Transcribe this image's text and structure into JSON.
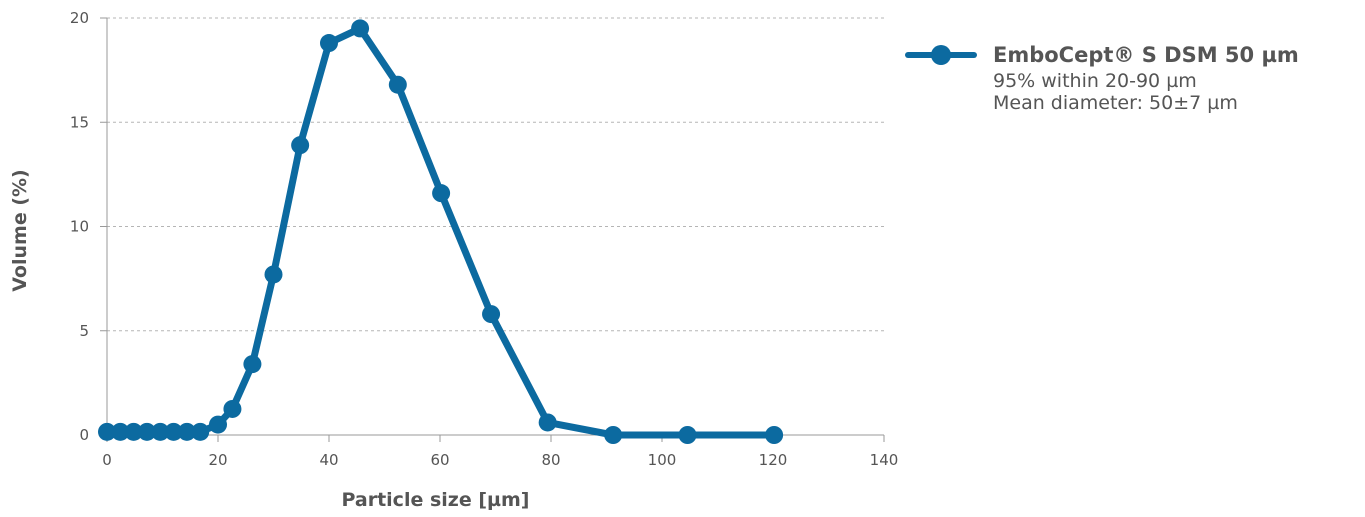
{
  "chart_data": {
    "type": "line",
    "xlabel": "Particle size [µm]",
    "ylabel": "Volume (%)",
    "xlim": [
      0,
      140
    ],
    "ylim": [
      0,
      20
    ],
    "xticks": [
      0,
      20,
      40,
      60,
      80,
      100,
      120,
      140
    ],
    "yticks": [
      0,
      5,
      10,
      15,
      20
    ],
    "grid": "horizontal dashed",
    "legend_position": "right",
    "series": [
      {
        "name": "EmboCept® S DSM 50 µm",
        "color": "#0c6aa0",
        "x": [
          0,
          2.4,
          4.8,
          7.2,
          9.6,
          12,
          14.4,
          16.8,
          20,
          22.6,
          26.2,
          30,
          34.8,
          40,
          45.6,
          52.4,
          60.2,
          69.2,
          79.4,
          91.2,
          104.6,
          120.2
        ],
        "y": [
          0.15,
          0.15,
          0.15,
          0.15,
          0.15,
          0.15,
          0.15,
          0.15,
          0.5,
          1.25,
          3.4,
          7.7,
          13.9,
          18.8,
          19.5,
          16.8,
          11.6,
          5.8,
          0.6,
          0.0,
          0.0,
          0.0
        ]
      }
    ]
  },
  "legend": {
    "name": "EmboCept® S DSM 50 µm",
    "line1": "95% within 20-90 µm",
    "line2": "Mean diameter: 50±7 µm"
  }
}
